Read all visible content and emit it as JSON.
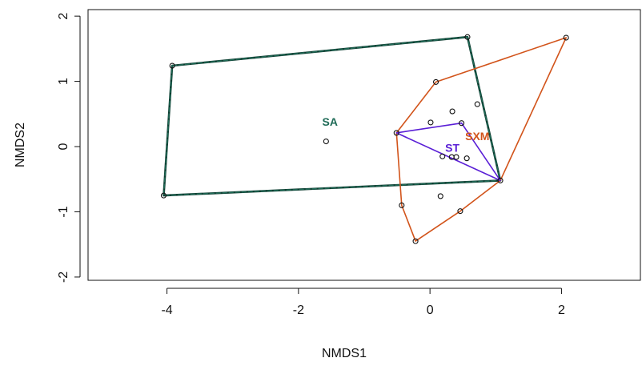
{
  "chart_data": {
    "type": "scatter",
    "title": "",
    "xlabel": "NMDS1",
    "ylabel": "NMDS2",
    "xlim": [
      -5.2,
      3.2
    ],
    "ylim": [
      -2.05,
      2.1
    ],
    "x_ticks": [
      -4,
      -2,
      0,
      2
    ],
    "y_ticks": [
      -2,
      -1,
      0,
      1,
      2
    ],
    "x_tick_labels": [
      "-4",
      "-2",
      "0",
      "2"
    ],
    "y_tick_labels": [
      "-2",
      "-1",
      "0",
      "1",
      "2"
    ],
    "grid": false,
    "points": [
      {
        "x": -3.92,
        "y": 1.24
      },
      {
        "x": 0.57,
        "y": 1.68
      },
      {
        "x": -4.05,
        "y": -0.75
      },
      {
        "x": 1.07,
        "y": -0.52
      },
      {
        "x": -1.58,
        "y": 0.08
      },
      {
        "x": 2.07,
        "y": 1.67
      },
      {
        "x": 0.09,
        "y": 0.99
      },
      {
        "x": 0.72,
        "y": 0.65
      },
      {
        "x": 0.34,
        "y": 0.54
      },
      {
        "x": 0.01,
        "y": 0.37
      },
      {
        "x": 0.48,
        "y": 0.36
      },
      {
        "x": -0.51,
        "y": 0.21
      },
      {
        "x": 0.19,
        "y": -0.15
      },
      {
        "x": 0.33,
        "y": -0.16
      },
      {
        "x": 0.4,
        "y": -0.16
      },
      {
        "x": 0.56,
        "y": -0.18
      },
      {
        "x": 0.16,
        "y": -0.76
      },
      {
        "x": -0.43,
        "y": -0.9
      },
      {
        "x": 0.46,
        "y": -0.99
      },
      {
        "x": -0.22,
        "y": -1.45
      }
    ],
    "groups": [
      {
        "name": "SA",
        "color": "#1f6b57",
        "label_pos": [
          -1.52,
          0.38
        ],
        "hull": [
          [
            -3.92,
            1.24
          ],
          [
            0.57,
            1.68
          ],
          [
            1.07,
            -0.52
          ],
          [
            -4.05,
            -0.75
          ]
        ]
      },
      {
        "name": "SXM",
        "color": "#d2541b",
        "label_pos": [
          0.72,
          0.16
        ],
        "hull": [
          [
            0.09,
            0.99
          ],
          [
            2.07,
            1.67
          ],
          [
            1.07,
            -0.52
          ],
          [
            0.46,
            -0.99
          ],
          [
            -0.22,
            -1.45
          ],
          [
            -0.43,
            -0.9
          ],
          [
            -0.51,
            0.21
          ]
        ]
      },
      {
        "name": "ST",
        "color": "#5a1fd6",
        "label_pos": [
          0.34,
          -0.02
        ],
        "hull": [
          [
            -0.51,
            0.21
          ],
          [
            0.48,
            0.36
          ],
          [
            1.07,
            -0.52
          ]
        ]
      }
    ]
  }
}
